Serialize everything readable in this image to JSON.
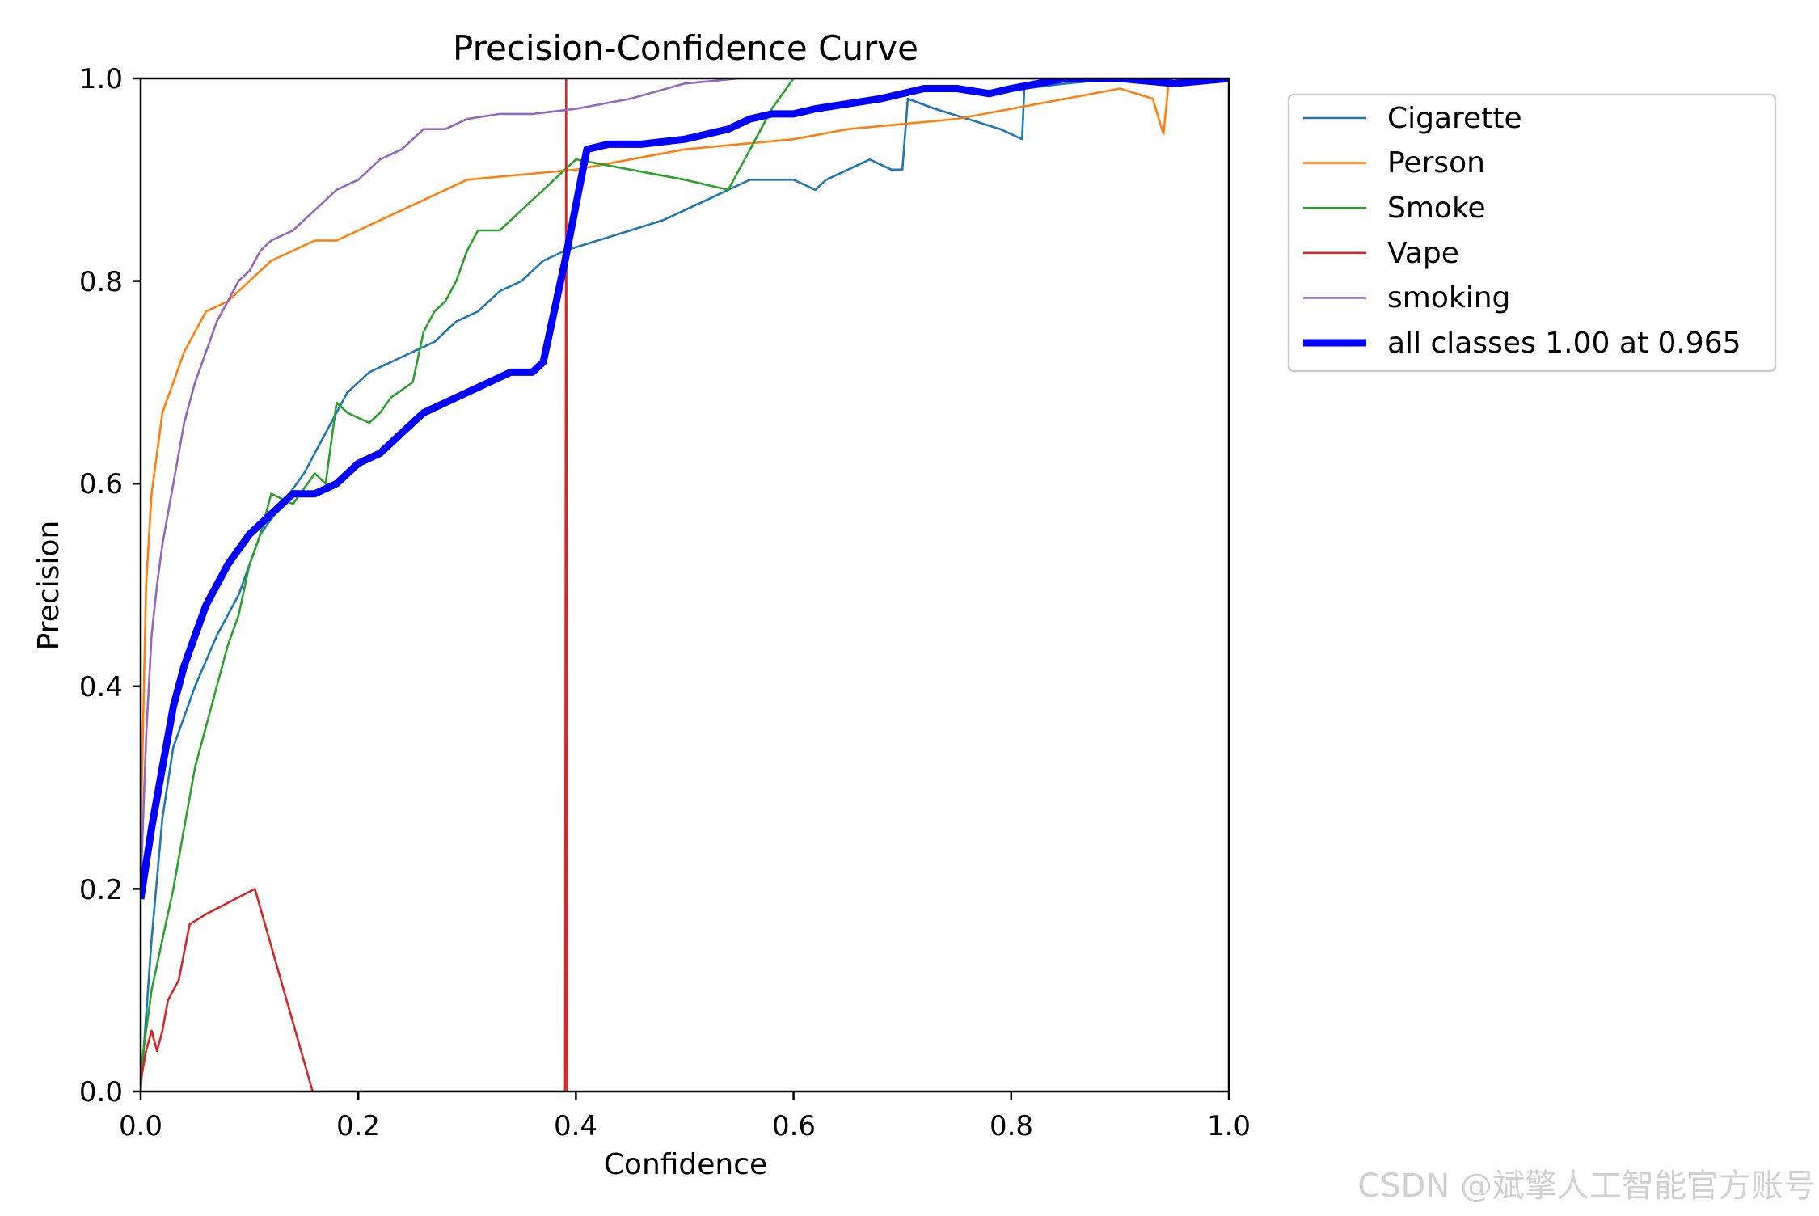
{
  "chart_data": {
    "type": "line",
    "title": "Precision-Confidence Curve",
    "xlabel": "Confidence",
    "ylabel": "Precision",
    "xlim": [
      0.0,
      1.0
    ],
    "ylim": [
      0.0,
      1.0
    ],
    "xticks": [
      "0.0",
      "0.2",
      "0.4",
      "0.6",
      "0.8",
      "1.0"
    ],
    "yticks": [
      "0.0",
      "0.2",
      "0.4",
      "0.6",
      "0.8",
      "1.0"
    ],
    "grid": false,
    "legend_position": "outside-top-right",
    "series": [
      {
        "name": "Cigarette",
        "color": "#1f77b4",
        "width": "thin",
        "x": [
          0.0,
          0.01,
          0.02,
          0.03,
          0.05,
          0.07,
          0.09,
          0.11,
          0.13,
          0.15,
          0.17,
          0.19,
          0.21,
          0.23,
          0.25,
          0.27,
          0.29,
          0.31,
          0.33,
          0.35,
          0.37,
          0.39,
          0.42,
          0.45,
          0.48,
          0.5,
          0.52,
          0.54,
          0.56,
          0.58,
          0.6,
          0.62,
          0.63,
          0.65,
          0.67,
          0.69,
          0.7,
          0.705,
          0.73,
          0.76,
          0.79,
          0.81,
          0.812,
          0.85,
          0.9,
          0.95,
          1.0
        ],
        "y": [
          0.0,
          0.15,
          0.27,
          0.34,
          0.4,
          0.45,
          0.49,
          0.55,
          0.58,
          0.61,
          0.65,
          0.69,
          0.71,
          0.72,
          0.73,
          0.74,
          0.76,
          0.77,
          0.79,
          0.8,
          0.82,
          0.83,
          0.84,
          0.85,
          0.86,
          0.87,
          0.88,
          0.89,
          0.9,
          0.9,
          0.9,
          0.89,
          0.9,
          0.91,
          0.92,
          0.91,
          0.91,
          0.98,
          0.97,
          0.96,
          0.95,
          0.94,
          0.99,
          0.995,
          1.0,
          1.0,
          1.0
        ]
      },
      {
        "name": "Person",
        "color": "#ff7f0e",
        "width": "thin",
        "x": [
          0.0,
          0.005,
          0.01,
          0.015,
          0.02,
          0.03,
          0.04,
          0.05,
          0.06,
          0.08,
          0.1,
          0.12,
          0.14,
          0.16,
          0.18,
          0.2,
          0.22,
          0.24,
          0.26,
          0.3,
          0.35,
          0.4,
          0.45,
          0.5,
          0.55,
          0.6,
          0.65,
          0.7,
          0.75,
          0.8,
          0.85,
          0.9,
          0.93,
          0.94,
          0.945,
          0.96,
          1.0
        ],
        "y": [
          0.25,
          0.5,
          0.59,
          0.63,
          0.67,
          0.7,
          0.73,
          0.75,
          0.77,
          0.78,
          0.8,
          0.82,
          0.83,
          0.84,
          0.84,
          0.85,
          0.86,
          0.87,
          0.88,
          0.9,
          0.905,
          0.91,
          0.92,
          0.93,
          0.935,
          0.94,
          0.95,
          0.955,
          0.96,
          0.97,
          0.98,
          0.99,
          0.98,
          0.945,
          1.0,
          1.0,
          1.0
        ]
      },
      {
        "name": "Smoke",
        "color": "#2ca02c",
        "width": "thin",
        "x": [
          0.0,
          0.01,
          0.02,
          0.03,
          0.04,
          0.05,
          0.06,
          0.07,
          0.08,
          0.09,
          0.1,
          0.11,
          0.12,
          0.14,
          0.16,
          0.17,
          0.18,
          0.19,
          0.2,
          0.21,
          0.22,
          0.23,
          0.25,
          0.26,
          0.27,
          0.28,
          0.29,
          0.3,
          0.31,
          0.33,
          0.35,
          0.4,
          0.45,
          0.5,
          0.54,
          0.56,
          0.58,
          0.6
        ],
        "y": [
          0.02,
          0.1,
          0.15,
          0.2,
          0.26,
          0.32,
          0.36,
          0.4,
          0.44,
          0.47,
          0.52,
          0.55,
          0.59,
          0.58,
          0.61,
          0.6,
          0.68,
          0.67,
          0.665,
          0.66,
          0.67,
          0.685,
          0.7,
          0.75,
          0.77,
          0.78,
          0.8,
          0.83,
          0.85,
          0.85,
          0.87,
          0.92,
          0.91,
          0.9,
          0.89,
          0.93,
          0.97,
          1.0
        ]
      },
      {
        "name": "Vape",
        "color": "#d62728",
        "width": "thin",
        "x": [
          0.0,
          0.005,
          0.01,
          0.015,
          0.02,
          0.025,
          0.035,
          0.045,
          0.06,
          0.105,
          0.158,
          0.39,
          0.391,
          0.392
        ],
        "y": [
          0.01,
          0.04,
          0.06,
          0.04,
          0.06,
          0.09,
          0.11,
          0.165,
          0.175,
          0.2,
          0.0,
          0.0,
          1.0,
          0.0
        ]
      },
      {
        "name": "smoking",
        "color": "#9467bd",
        "width": "thin",
        "x": [
          0.0,
          0.005,
          0.01,
          0.015,
          0.02,
          0.03,
          0.04,
          0.05,
          0.06,
          0.07,
          0.08,
          0.09,
          0.1,
          0.11,
          0.12,
          0.14,
          0.16,
          0.18,
          0.2,
          0.22,
          0.24,
          0.26,
          0.28,
          0.3,
          0.33,
          0.36,
          0.4,
          0.45,
          0.5,
          0.55,
          0.6,
          1.0
        ],
        "y": [
          0.2,
          0.35,
          0.45,
          0.5,
          0.54,
          0.6,
          0.66,
          0.7,
          0.73,
          0.76,
          0.78,
          0.8,
          0.81,
          0.83,
          0.84,
          0.85,
          0.87,
          0.89,
          0.9,
          0.92,
          0.93,
          0.95,
          0.95,
          0.96,
          0.965,
          0.965,
          0.97,
          0.98,
          0.995,
          1.0,
          1.0,
          1.0
        ]
      },
      {
        "name": "all classes 1.00 at 0.965",
        "color": "#0000ff",
        "width": "thick",
        "x": [
          0.0,
          0.01,
          0.02,
          0.03,
          0.04,
          0.05,
          0.06,
          0.08,
          0.1,
          0.12,
          0.14,
          0.16,
          0.18,
          0.2,
          0.22,
          0.24,
          0.26,
          0.28,
          0.3,
          0.32,
          0.34,
          0.36,
          0.37,
          0.39,
          0.41,
          0.43,
          0.46,
          0.5,
          0.54,
          0.56,
          0.58,
          0.6,
          0.62,
          0.65,
          0.68,
          0.72,
          0.75,
          0.78,
          0.8,
          0.85,
          0.9,
          0.95,
          1.0
        ],
        "y": [
          0.19,
          0.26,
          0.32,
          0.38,
          0.42,
          0.45,
          0.48,
          0.52,
          0.55,
          0.57,
          0.59,
          0.59,
          0.6,
          0.62,
          0.63,
          0.65,
          0.67,
          0.68,
          0.69,
          0.7,
          0.71,
          0.71,
          0.72,
          0.82,
          0.93,
          0.935,
          0.935,
          0.94,
          0.95,
          0.96,
          0.965,
          0.965,
          0.97,
          0.975,
          0.98,
          0.99,
          0.99,
          0.985,
          0.99,
          1.0,
          1.0,
          0.995,
          1.0
        ]
      }
    ]
  },
  "watermark": "CSDN @斌擎人工智能官方账号"
}
